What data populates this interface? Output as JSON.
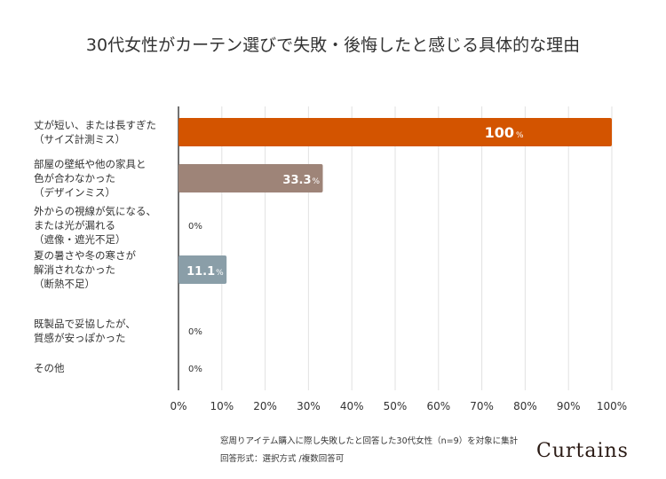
{
  "chart_data": {
    "type": "bar",
    "orientation": "horizontal",
    "title": "30代女性がカーテン選びで失敗・後悔したと感じる具体的な理由",
    "categories": [
      [
        "丈が短い、または長すぎた",
        "（サイズ計測ミス）"
      ],
      [
        "部屋の壁紙や他の家具と",
        "色が合わなかった",
        "（デザインミス）"
      ],
      [
        "外からの視線が気になる、",
        "または光が漏れる",
        "（遮像・遮光不足）"
      ],
      [
        "夏の暑さや冬の寒さが",
        "解消されなかった",
        "（断熱不足）"
      ],
      [
        "既製品で妥協したが、",
        "質感が安っぽかった"
      ],
      [
        "その他"
      ]
    ],
    "values": [
      100,
      33.3,
      0,
      11.1,
      0,
      0
    ],
    "value_labels": [
      "100",
      "33.3",
      "0",
      "11.1",
      "0",
      "0"
    ],
    "value_unit": "%",
    "bar_colors": [
      "#d35400",
      "#9e8478",
      "#cccccc",
      "#8a9ea8",
      "#cccccc",
      "#cccccc"
    ],
    "xlim": [
      0,
      100
    ],
    "xticks": [
      "0%",
      "10%",
      "20%",
      "30%",
      "40%",
      "50%",
      "60%",
      "70%",
      "80%",
      "90%",
      "100%"
    ],
    "grid": true
  },
  "footer": {
    "note1": "窓周りアイテム購入に際し失敗したと回答した30代女性（n=9）を対象に集計",
    "note2": "回答形式：選択方式 /複数回答可",
    "logo": "Curtains"
  }
}
